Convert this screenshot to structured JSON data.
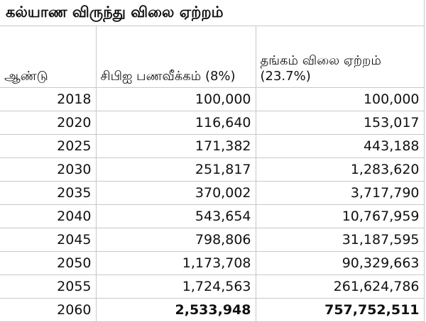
{
  "title": "கல்யாண விருந்து விலை ஏற்றம்",
  "headers": {
    "year": "ஆண்டு",
    "cpi": "சிபிஐ பணவீக்கம் (8%)",
    "gold": "தங்கம் விலை ஏற்றம் (23.7%)"
  },
  "rows": [
    {
      "year": "2018",
      "cpi": "100,000",
      "gold": "100,000"
    },
    {
      "year": "2020",
      "cpi": "116,640",
      "gold": "153,017"
    },
    {
      "year": "2025",
      "cpi": "171,382",
      "gold": "443,188"
    },
    {
      "year": "2030",
      "cpi": "251,817",
      "gold": "1,283,620"
    },
    {
      "year": "2035",
      "cpi": "370,002",
      "gold": "3,717,790"
    },
    {
      "year": "2040",
      "cpi": "543,654",
      "gold": "10,767,959"
    },
    {
      "year": "2045",
      "cpi": "798,806",
      "gold": "31,187,595"
    },
    {
      "year": "2050",
      "cpi": "1,173,708",
      "gold": "90,329,663"
    },
    {
      "year": "2055",
      "cpi": "1,724,563",
      "gold": "261,624,786"
    },
    {
      "year": "2060",
      "cpi": "2,533,948",
      "gold": "757,752,511"
    }
  ]
}
